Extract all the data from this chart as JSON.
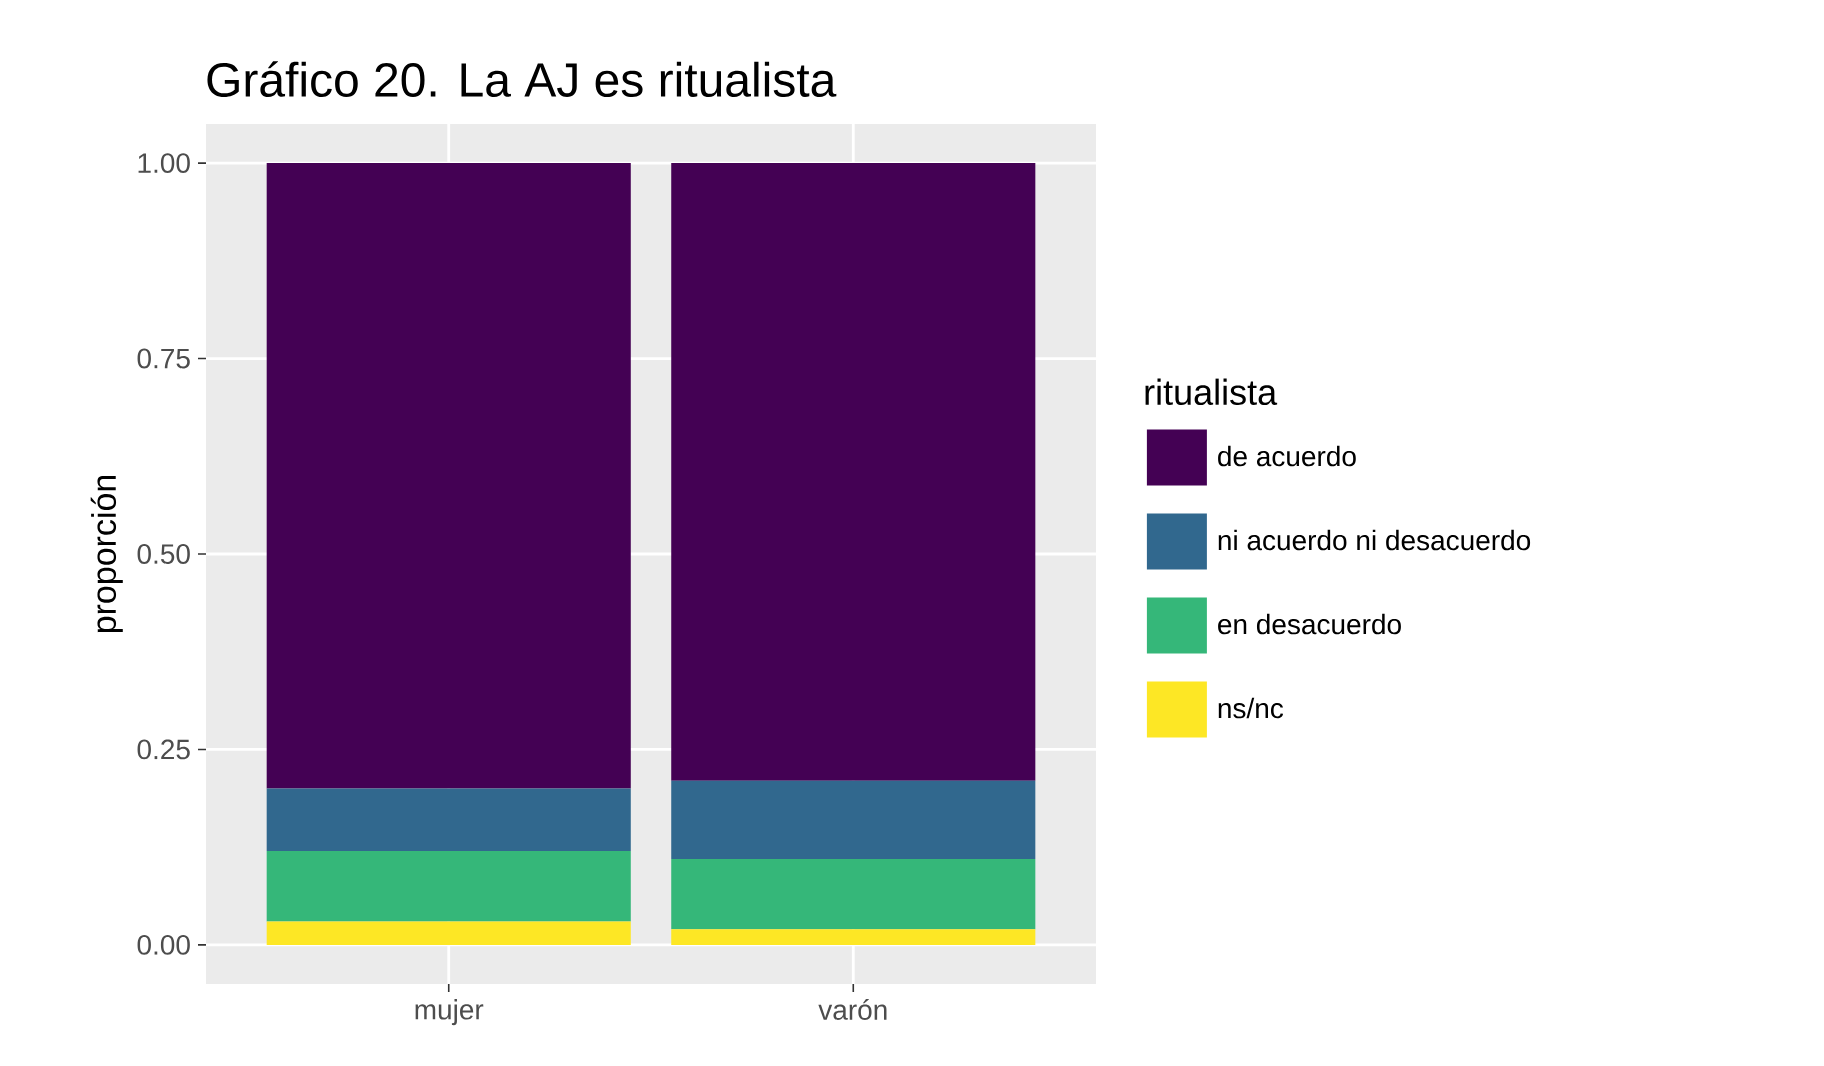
{
  "chart_data": {
    "type": "bar",
    "stacked": true,
    "title": "Gráfico 20. La AJ es ritualista",
    "ylabel": "proporción",
    "legend_title": "ritualista",
    "categories": [
      "mujer",
      "varón"
    ],
    "series": [
      {
        "name": "ns/nc",
        "color": "#fde725",
        "values": [
          0.03,
          0.02
        ]
      },
      {
        "name": "en desacuerdo",
        "color": "#35b779",
        "values": [
          0.09,
          0.09
        ]
      },
      {
        "name": "ni acuerdo ni desacuerdo",
        "color": "#31688e",
        "values": [
          0.08,
          0.1
        ]
      },
      {
        "name": "de acuerdo",
        "color": "#440154",
        "values": [
          0.8,
          0.79
        ]
      }
    ],
    "ylim": [
      -0.05,
      1.05
    ],
    "yticks": [
      {
        "value": 0,
        "label": "0.00"
      },
      {
        "value": 0.25,
        "label": "0.25"
      },
      {
        "value": 0.5,
        "label": "0.50"
      },
      {
        "value": 0.75,
        "label": "0.75"
      },
      {
        "value": 1,
        "label": "1.00"
      }
    ],
    "grid": true,
    "legend": "right"
  }
}
